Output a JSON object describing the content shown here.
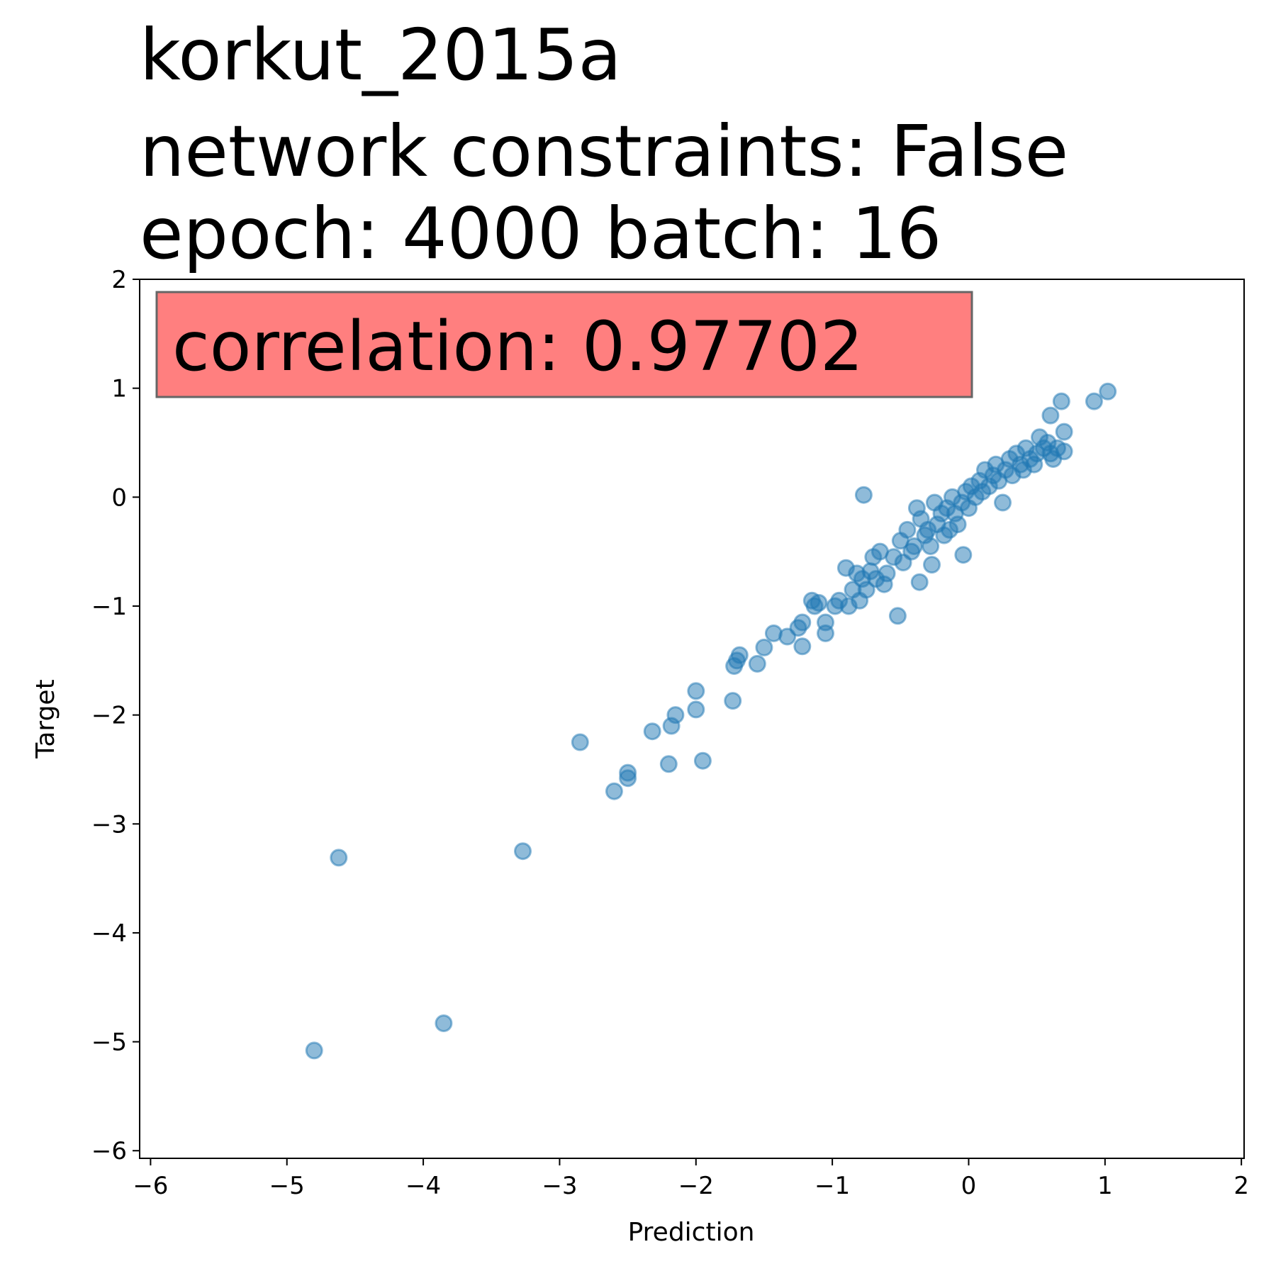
{
  "chart_data": {
    "type": "scatter",
    "title_lines": [
      "korkut_2015a",
      "network constraints: False",
      "epoch: 4000 batch: 16"
    ],
    "xlabel": "Prediction",
    "ylabel": "Target",
    "xlim": [
      -6.08,
      2.02
    ],
    "ylim": [
      -6.07,
      2.0
    ],
    "xticks": [
      -6,
      -5,
      -4,
      -3,
      -2,
      -1,
      0,
      1,
      2
    ],
    "yticks": [
      -6,
      -5,
      -4,
      -3,
      -2,
      -1,
      0,
      1,
      2
    ],
    "xtick_labels": [
      "−6",
      "−5",
      "−4",
      "−3",
      "−2",
      "−1",
      "0",
      "1",
      "2"
    ],
    "ytick_labels": [
      "−6",
      "−5",
      "−4",
      "−3",
      "−2",
      "−1",
      "0",
      "1",
      "2"
    ],
    "annotation": {
      "text": "correlation: 0.97702",
      "background": "#ff7f7f",
      "border": "#666666",
      "placement": "top-left"
    },
    "grid": false,
    "series": [
      {
        "color": "#1f77b4",
        "alpha": 0.5,
        "points": [
          [
            -4.8,
            -5.08
          ],
          [
            -3.85,
            -4.83
          ],
          [
            -4.62,
            -3.31
          ],
          [
            -3.27,
            -3.25
          ],
          [
            -2.85,
            -2.25
          ],
          [
            -2.6,
            -2.7
          ],
          [
            -2.5,
            -2.53
          ],
          [
            -2.5,
            -2.58
          ],
          [
            -2.32,
            -2.15
          ],
          [
            -2.2,
            -2.45
          ],
          [
            -2.18,
            -2.1
          ],
          [
            -2.15,
            -2.0
          ],
          [
            -2.0,
            -1.78
          ],
          [
            -2.0,
            -1.95
          ],
          [
            -1.95,
            -2.42
          ],
          [
            -1.73,
            -1.87
          ],
          [
            -1.72,
            -1.55
          ],
          [
            -1.7,
            -1.5
          ],
          [
            -1.68,
            -1.45
          ],
          [
            -1.55,
            -1.53
          ],
          [
            -1.5,
            -1.38
          ],
          [
            -1.43,
            -1.25
          ],
          [
            -1.33,
            -1.28
          ],
          [
            -1.25,
            -1.2
          ],
          [
            -1.22,
            -1.37
          ],
          [
            -1.22,
            -1.15
          ],
          [
            -1.15,
            -0.95
          ],
          [
            -1.13,
            -1.0
          ],
          [
            -1.1,
            -0.97
          ],
          [
            -1.05,
            -1.15
          ],
          [
            -1.05,
            -1.25
          ],
          [
            -0.98,
            -1.0
          ],
          [
            -0.95,
            -0.95
          ],
          [
            -0.9,
            -0.65
          ],
          [
            -0.88,
            -1.0
          ],
          [
            -0.85,
            -0.85
          ],
          [
            -0.82,
            -0.7
          ],
          [
            -0.8,
            -0.95
          ],
          [
            -0.78,
            -0.75
          ],
          [
            -0.77,
            0.02
          ],
          [
            -0.75,
            -0.85
          ],
          [
            -0.72,
            -0.68
          ],
          [
            -0.7,
            -0.55
          ],
          [
            -0.68,
            -0.75
          ],
          [
            -0.65,
            -0.5
          ],
          [
            -0.62,
            -0.8
          ],
          [
            -0.6,
            -0.7
          ],
          [
            -0.55,
            -0.55
          ],
          [
            -0.52,
            -1.09
          ],
          [
            -0.5,
            -0.4
          ],
          [
            -0.48,
            -0.6
          ],
          [
            -0.45,
            -0.3
          ],
          [
            -0.42,
            -0.5
          ],
          [
            -0.4,
            -0.45
          ],
          [
            -0.38,
            -0.1
          ],
          [
            -0.36,
            -0.78
          ],
          [
            -0.35,
            -0.2
          ],
          [
            -0.32,
            -0.35
          ],
          [
            -0.3,
            -0.3
          ],
          [
            -0.28,
            -0.45
          ],
          [
            -0.27,
            -0.62
          ],
          [
            -0.25,
            -0.05
          ],
          [
            -0.23,
            -0.25
          ],
          [
            -0.2,
            -0.15
          ],
          [
            -0.18,
            -0.35
          ],
          [
            -0.16,
            -0.1
          ],
          [
            -0.14,
            -0.3
          ],
          [
            -0.12,
            0.0
          ],
          [
            -0.1,
            -0.15
          ],
          [
            -0.08,
            -0.25
          ],
          [
            -0.05,
            -0.05
          ],
          [
            -0.04,
            -0.53
          ],
          [
            -0.02,
            0.05
          ],
          [
            0.0,
            -0.1
          ],
          [
            0.02,
            0.1
          ],
          [
            0.05,
            0.0
          ],
          [
            0.08,
            0.15
          ],
          [
            0.1,
            0.05
          ],
          [
            0.12,
            0.25
          ],
          [
            0.15,
            0.1
          ],
          [
            0.18,
            0.2
          ],
          [
            0.2,
            0.3
          ],
          [
            0.22,
            0.15
          ],
          [
            0.25,
            -0.05
          ],
          [
            0.27,
            0.25
          ],
          [
            0.3,
            0.35
          ],
          [
            0.32,
            0.2
          ],
          [
            0.35,
            0.4
          ],
          [
            0.38,
            0.3
          ],
          [
            0.4,
            0.25
          ],
          [
            0.42,
            0.45
          ],
          [
            0.45,
            0.35
          ],
          [
            0.48,
            0.3
          ],
          [
            0.5,
            0.4
          ],
          [
            0.52,
            0.55
          ],
          [
            0.55,
            0.45
          ],
          [
            0.58,
            0.5
          ],
          [
            0.6,
            0.4
          ],
          [
            0.6,
            0.75
          ],
          [
            0.62,
            0.35
          ],
          [
            0.65,
            0.45
          ],
          [
            0.68,
            0.88
          ],
          [
            0.7,
            0.6
          ],
          [
            0.7,
            0.42
          ],
          [
            0.92,
            0.88
          ],
          [
            1.02,
            0.97
          ]
        ]
      }
    ]
  }
}
